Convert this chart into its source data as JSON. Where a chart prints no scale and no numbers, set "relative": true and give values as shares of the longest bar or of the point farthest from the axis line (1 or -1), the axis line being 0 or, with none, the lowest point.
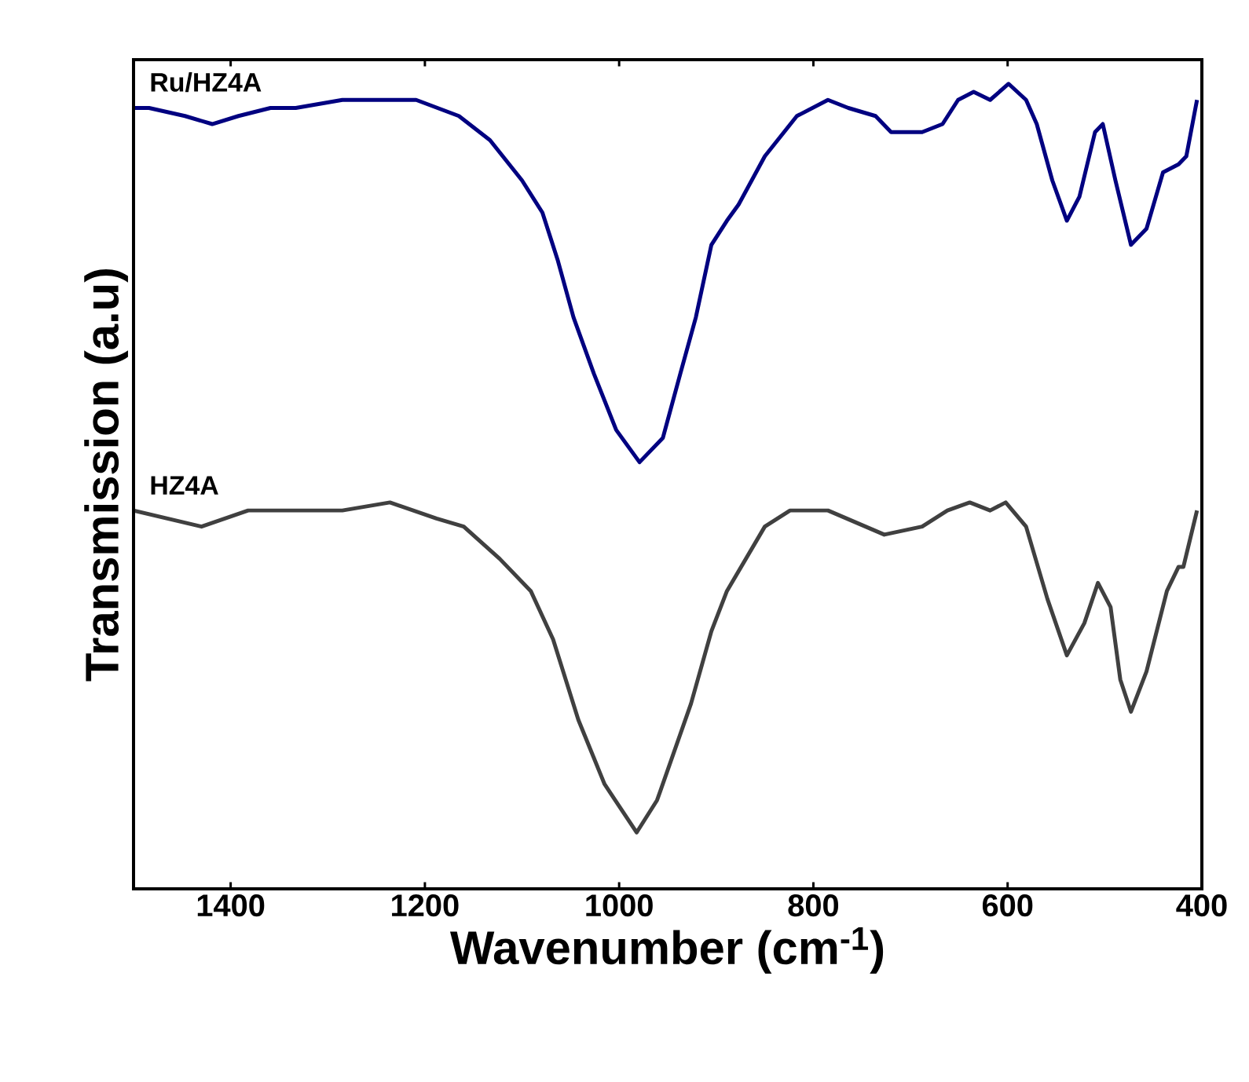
{
  "chart_data": {
    "type": "line",
    "relative": true,
    "xlabel": "Wavenumber (cm$^{-1}$)",
    "ylabel": "Transmission (a.u)",
    "xlim": [
      1500,
      400
    ],
    "xticks": [
      1400,
      1200,
      1000,
      800,
      600,
      400
    ],
    "grid": false,
    "legend": false,
    "marker": "none",
    "line_style": "solid",
    "series": [
      {
        "name": "Ru/HZ4A",
        "color": "#000080",
        "x": [
          1500,
          1484,
          1447,
          1419,
          1392,
          1359,
          1333,
          1285,
          1236,
          1209,
          1165,
          1133,
          1100,
          1079,
          1063,
          1047,
          1026,
          1003,
          979,
          955,
          937,
          921,
          905,
          889,
          877,
          850,
          817,
          785,
          764,
          736,
          720,
          688,
          667,
          651,
          635,
          618,
          599,
          581,
          570,
          554,
          539,
          526,
          510,
          502,
          489,
          473,
          457,
          440,
          424,
          416,
          405
        ],
        "values": [
          0.97,
          0.97,
          0.96,
          0.95,
          0.96,
          0.97,
          0.97,
          0.98,
          0.98,
          0.98,
          0.96,
          0.93,
          0.88,
          0.84,
          0.78,
          0.71,
          0.64,
          0.57,
          0.53,
          0.56,
          0.64,
          0.71,
          0.8,
          0.83,
          0.85,
          0.91,
          0.96,
          0.98,
          0.97,
          0.96,
          0.94,
          0.94,
          0.95,
          0.98,
          0.99,
          0.98,
          1.0,
          0.98,
          0.95,
          0.88,
          0.83,
          0.86,
          0.94,
          0.95,
          0.88,
          0.8,
          0.82,
          0.89,
          0.9,
          0.91,
          0.98
        ]
      },
      {
        "name": "HZ4A",
        "color": "#404040",
        "x": [
          1500,
          1430,
          1382,
          1285,
          1236,
          1188,
          1160,
          1123,
          1091,
          1068,
          1042,
          1015,
          982,
          961,
          958,
          926,
          905,
          889,
          850,
          824,
          785,
          727,
          688,
          662,
          639,
          618,
          602,
          581,
          559,
          539,
          521,
          507,
          494,
          484,
          473,
          457,
          436,
          424,
          419,
          405
        ],
        "values": [
          0.47,
          0.45,
          0.47,
          0.47,
          0.48,
          0.46,
          0.45,
          0.41,
          0.37,
          0.31,
          0.21,
          0.13,
          0.07,
          0.11,
          0.12,
          0.23,
          0.32,
          0.37,
          0.45,
          0.47,
          0.47,
          0.44,
          0.45,
          0.47,
          0.48,
          0.47,
          0.48,
          0.45,
          0.36,
          0.29,
          0.33,
          0.38,
          0.35,
          0.26,
          0.22,
          0.27,
          0.37,
          0.4,
          0.4,
          0.47
        ]
      }
    ]
  }
}
